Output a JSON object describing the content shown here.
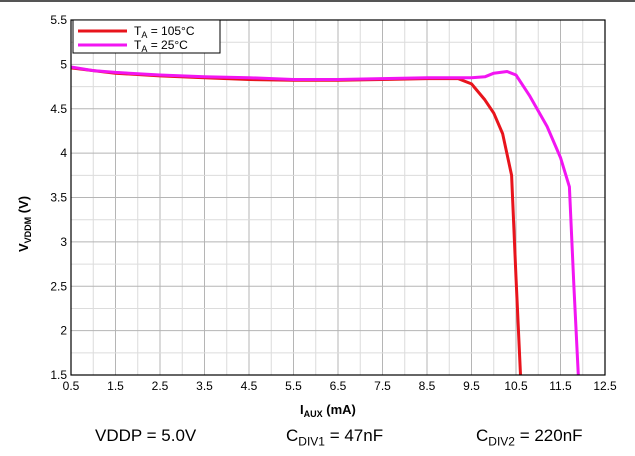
{
  "chart_data": {
    "type": "line",
    "xlabel": {
      "main": "I",
      "sub": "AUX",
      "rest": " (mA)"
    },
    "ylabel": {
      "main": "V",
      "sub": "VDDM",
      "rest": " (V)"
    },
    "xlim": [
      0.5,
      12.5
    ],
    "ylim": [
      1.5,
      5.5
    ],
    "x_ticks": [
      "0.5",
      "1.5",
      "2.5",
      "3.5",
      "4.5",
      "5.5",
      "6.5",
      "7.5",
      "8.5",
      "9.5",
      "10.5",
      "11.5",
      "12.5"
    ],
    "y_ticks": [
      "1.5",
      "2",
      "2.5",
      "3",
      "3.5",
      "4",
      "4.5",
      "5",
      "5.5"
    ],
    "x_minor_step": 0.5,
    "y_minor_step": 0.25,
    "grid": true,
    "legend_position": "top-left",
    "series": [
      {
        "label_main": "T",
        "label_sub": "A",
        "label_rest": " = 105°C",
        "color": "#e8141c",
        "points": [
          [
            0.5,
            4.96
          ],
          [
            1.0,
            4.93
          ],
          [
            1.5,
            4.9
          ],
          [
            2.5,
            4.87
          ],
          [
            3.5,
            4.85
          ],
          [
            4.5,
            4.83
          ],
          [
            5.5,
            4.82
          ],
          [
            6.5,
            4.82
          ],
          [
            7.5,
            4.83
          ],
          [
            8.5,
            4.84
          ],
          [
            9.2,
            4.84
          ],
          [
            9.5,
            4.78
          ],
          [
            9.8,
            4.6
          ],
          [
            10.0,
            4.45
          ],
          [
            10.2,
            4.22
          ],
          [
            10.4,
            3.75
          ],
          [
            10.5,
            2.6
          ],
          [
            10.6,
            1.5
          ]
        ]
      },
      {
        "label_main": "T",
        "label_sub": "A",
        "label_rest": " = 25°C",
        "color": "#f215f2",
        "points": [
          [
            0.5,
            4.97
          ],
          [
            1.0,
            4.93
          ],
          [
            1.5,
            4.91
          ],
          [
            2.5,
            4.88
          ],
          [
            3.5,
            4.86
          ],
          [
            4.5,
            4.85
          ],
          [
            5.5,
            4.83
          ],
          [
            6.5,
            4.83
          ],
          [
            7.5,
            4.84
          ],
          [
            8.5,
            4.85
          ],
          [
            9.5,
            4.85
          ],
          [
            9.8,
            4.86
          ],
          [
            10.0,
            4.9
          ],
          [
            10.3,
            4.92
          ],
          [
            10.5,
            4.88
          ],
          [
            10.8,
            4.65
          ],
          [
            11.2,
            4.3
          ],
          [
            11.5,
            3.95
          ],
          [
            11.7,
            3.62
          ],
          [
            11.8,
            2.5
          ],
          [
            11.9,
            1.5
          ]
        ]
      }
    ]
  },
  "captions": [
    {
      "main": "VDDP = 5.0V",
      "sub": "",
      "rest": ""
    },
    {
      "main": "C",
      "sub": "DIV1",
      "rest": " = 47nF"
    },
    {
      "main": "C",
      "sub": "DIV2",
      "rest": " = 220nF"
    }
  ]
}
